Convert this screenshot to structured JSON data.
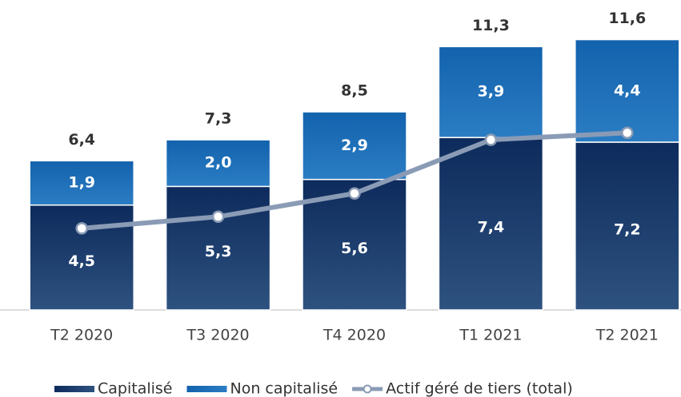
{
  "chart_data": {
    "type": "bar",
    "stacked": true,
    "categories": [
      "T2 2020",
      "T3 2020",
      "T4 2020",
      "T1 2021",
      "T2 2021"
    ],
    "series": [
      {
        "name": "Capitalisé",
        "color": "#0d2b5c",
        "values": [
          4.5,
          5.3,
          5.6,
          7.4,
          7.2
        ],
        "value_labels": [
          "4,5",
          "5,3",
          "5,6",
          "7,4",
          "7,2"
        ]
      },
      {
        "name": "Non capitalisé",
        "color": "#1766b0",
        "values": [
          1.9,
          2.0,
          2.9,
          3.9,
          4.4
        ],
        "value_labels": [
          "1,9",
          "2,0",
          "2,9",
          "3,9",
          "4,4"
        ]
      },
      {
        "name": "Actif géré de tiers (total)",
        "type": "line",
        "color": "#8a9bb5",
        "values": [
          3.5,
          4.0,
          5.0,
          7.3,
          7.6
        ]
      }
    ],
    "totals": [
      6.4,
      7.3,
      8.5,
      11.3,
      11.6
    ],
    "total_labels": [
      "6,4",
      "7,3",
      "8,5",
      "11,3",
      "11,6"
    ],
    "ylim": [
      0,
      13.3
    ],
    "legend": "bottom"
  }
}
